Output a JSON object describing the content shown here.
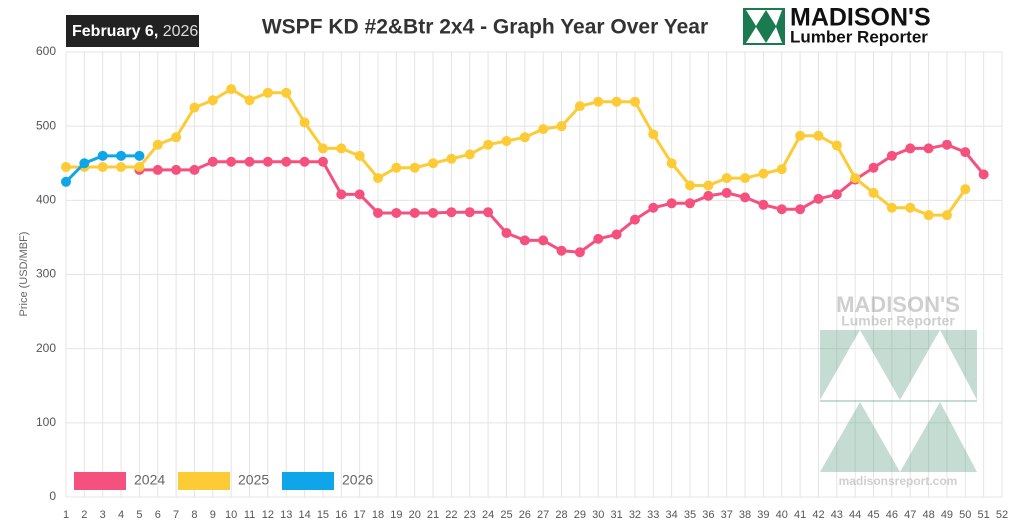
{
  "chart_data": {
    "type": "line",
    "title": "WSPF KD #2&Btr 2x4 - Graph Year Over Year",
    "date_badge": {
      "main": "February 6,",
      "year": "2026"
    },
    "logo": {
      "title": "MADISON'S",
      "subtitle": "Lumber Reporter"
    },
    "watermark": {
      "title": "MADISON'S",
      "subtitle": "Lumber Reporter",
      "url": "madisonsreport.com"
    },
    "y_label": "Price (USD/MBF)",
    "categories": [
      "1",
      "2",
      "3",
      "4",
      "5",
      "6",
      "7",
      "8",
      "9",
      "10",
      "11",
      "12",
      "13",
      "14",
      "15",
      "16",
      "17",
      "18",
      "19",
      "20",
      "21",
      "22",
      "23",
      "24",
      "25",
      "26",
      "27",
      "28",
      "29",
      "30",
      "31",
      "32",
      "33",
      "34",
      "35",
      "36",
      "37",
      "38",
      "39",
      "40",
      "41",
      "42",
      "43",
      "44",
      "45",
      "46",
      "47",
      "48",
      "49",
      "50",
      "51",
      "52"
    ],
    "ylim": [
      0,
      600
    ],
    "yticks": [
      0,
      100,
      200,
      300,
      400,
      500,
      600
    ],
    "grid": true,
    "legend": "bottom-left",
    "series": [
      {
        "name": "2024",
        "color": "#f5517f",
        "values": [
          null,
          null,
          null,
          null,
          441,
          441,
          441,
          441,
          452,
          452,
          452,
          452,
          452,
          452,
          452,
          408,
          408,
          383,
          383,
          383,
          383,
          384,
          384,
          384,
          356,
          346,
          346,
          332,
          330,
          348,
          354,
          374,
          390,
          396,
          396,
          406,
          410,
          404,
          394,
          388,
          388,
          402,
          408,
          428,
          444,
          460,
          470,
          470,
          475,
          465,
          435,
          null
        ]
      },
      {
        "name": "2025",
        "color": "#fccb35",
        "values": [
          445,
          445,
          445,
          445,
          445,
          475,
          485,
          525,
          535,
          550,
          535,
          545,
          545,
          505,
          470,
          470,
          460,
          430,
          444,
          444,
          450,
          456,
          462,
          475,
          480,
          485,
          496,
          500,
          527,
          533,
          533,
          533,
          489,
          450,
          420,
          420,
          430,
          430,
          436,
          442,
          487,
          487,
          474,
          430,
          410,
          390,
          390,
          380,
          380,
          415,
          null,
          null
        ]
      },
      {
        "name": "2026",
        "color": "#0ea5e9",
        "values": [
          425,
          450,
          460,
          460,
          460,
          null,
          null,
          null,
          null,
          null,
          null,
          null,
          null,
          null,
          null,
          null,
          null,
          null,
          null,
          null,
          null,
          null,
          null,
          null,
          null,
          null,
          null,
          null,
          null,
          null,
          null,
          null,
          null,
          null,
          null,
          null,
          null,
          null,
          null,
          null,
          null,
          null,
          null,
          null,
          null,
          null,
          null,
          null,
          null,
          null,
          null,
          null
        ]
      }
    ]
  }
}
